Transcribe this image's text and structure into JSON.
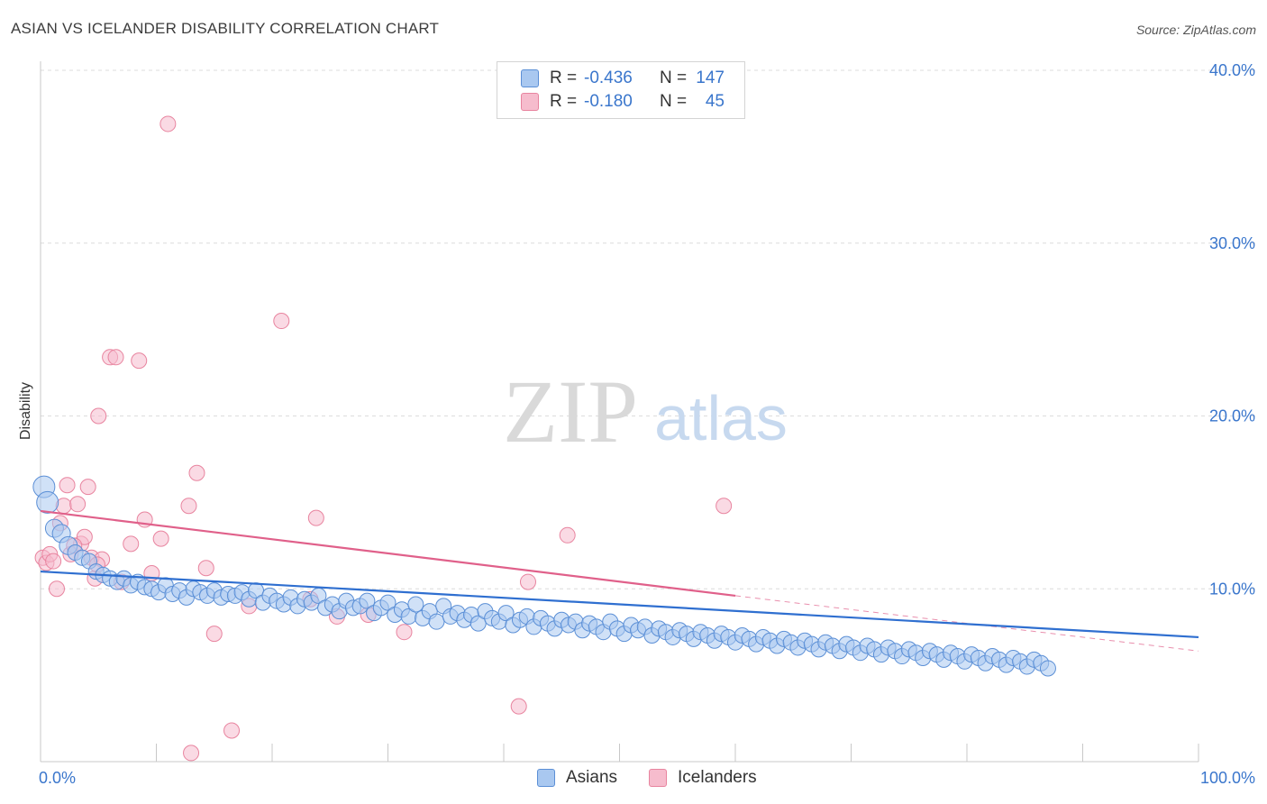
{
  "header": {
    "title": "ASIAN VS ICELANDER DISABILITY CORRELATION CHART",
    "source": "Source: ZipAtlas.com"
  },
  "watermark": {
    "zip": "ZIP",
    "atlas": "atlas"
  },
  "legend": {
    "rows": [
      {
        "r_label": "R =",
        "r_value": "-0.436",
        "n_label": "N =",
        "n_value": "147"
      },
      {
        "r_label": "R =",
        "r_value": "-0.180",
        "n_label": "N =",
        "n_value": "45"
      }
    ]
  },
  "bottom_legend": {
    "asians": "Asians",
    "icelanders": "Icelanders"
  },
  "colors": {
    "asians_fill": "#a9c8f0",
    "asians_stroke": "#5b8fd6",
    "asians_line": "#2f6fd0",
    "icelanders_fill": "#f6bccd",
    "icelanders_stroke": "#e8849f",
    "icelanders_line": "#e0608a",
    "tick_label": "#3a76cc",
    "grid": "#dcdcdc"
  },
  "chart_data": {
    "type": "scatter",
    "title": "ASIAN VS ICELANDER DISABILITY CORRELATION CHART",
    "xlabel": "",
    "ylabel": "Disability",
    "xlim": [
      0,
      100
    ],
    "ylim": [
      0,
      40
    ],
    "x_tick_labels": [
      "0.0%",
      "100.0%"
    ],
    "y_ticks": [
      10,
      20,
      30,
      40
    ],
    "y_tick_labels": [
      "10.0%",
      "20.0%",
      "30.0%",
      "40.0%"
    ],
    "grid": true,
    "legend_position": "top-center",
    "series": [
      {
        "name": "Asians",
        "r": -0.436,
        "n": 147,
        "trend": {
          "x": [
            0,
            100
          ],
          "y": [
            11.0,
            7.2
          ]
        },
        "points": [
          [
            0.3,
            15.9
          ],
          [
            0.6,
            15.0
          ],
          [
            1.2,
            13.5
          ],
          [
            1.8,
            13.2
          ],
          [
            2.4,
            12.5
          ],
          [
            3.0,
            12.1
          ],
          [
            3.6,
            11.8
          ],
          [
            4.2,
            11.6
          ],
          [
            4.8,
            11.0
          ],
          [
            5.4,
            10.8
          ],
          [
            6.0,
            10.6
          ],
          [
            6.6,
            10.4
          ],
          [
            7.2,
            10.6
          ],
          [
            7.8,
            10.2
          ],
          [
            8.4,
            10.4
          ],
          [
            9.0,
            10.1
          ],
          [
            9.6,
            10.0
          ],
          [
            10.2,
            9.8
          ],
          [
            10.8,
            10.2
          ],
          [
            11.4,
            9.7
          ],
          [
            12.0,
            9.9
          ],
          [
            12.6,
            9.5
          ],
          [
            13.2,
            10.0
          ],
          [
            13.8,
            9.8
          ],
          [
            14.4,
            9.6
          ],
          [
            15.0,
            9.9
          ],
          [
            15.6,
            9.5
          ],
          [
            16.2,
            9.7
          ],
          [
            16.8,
            9.6
          ],
          [
            17.4,
            9.8
          ],
          [
            18.0,
            9.4
          ],
          [
            18.6,
            9.9
          ],
          [
            19.2,
            9.2
          ],
          [
            19.8,
            9.6
          ],
          [
            20.4,
            9.3
          ],
          [
            21.0,
            9.1
          ],
          [
            21.6,
            9.5
          ],
          [
            22.2,
            9.0
          ],
          [
            22.8,
            9.4
          ],
          [
            23.4,
            9.2
          ],
          [
            24.0,
            9.6
          ],
          [
            24.6,
            8.9
          ],
          [
            25.2,
            9.1
          ],
          [
            25.8,
            8.7
          ],
          [
            26.4,
            9.3
          ],
          [
            27.0,
            8.9
          ],
          [
            27.6,
            9.0
          ],
          [
            28.2,
            9.3
          ],
          [
            28.8,
            8.6
          ],
          [
            29.4,
            8.9
          ],
          [
            30.0,
            9.2
          ],
          [
            30.6,
            8.5
          ],
          [
            31.2,
            8.8
          ],
          [
            31.8,
            8.4
          ],
          [
            32.4,
            9.1
          ],
          [
            33.0,
            8.3
          ],
          [
            33.6,
            8.7
          ],
          [
            34.2,
            8.1
          ],
          [
            34.8,
            9.0
          ],
          [
            35.4,
            8.4
          ],
          [
            36.0,
            8.6
          ],
          [
            36.6,
            8.2
          ],
          [
            37.2,
            8.5
          ],
          [
            37.8,
            8.0
          ],
          [
            38.4,
            8.7
          ],
          [
            39.0,
            8.3
          ],
          [
            39.6,
            8.1
          ],
          [
            40.2,
            8.6
          ],
          [
            40.8,
            7.9
          ],
          [
            41.4,
            8.2
          ],
          [
            42.0,
            8.4
          ],
          [
            42.6,
            7.8
          ],
          [
            43.2,
            8.3
          ],
          [
            43.8,
            8.0
          ],
          [
            44.4,
            7.7
          ],
          [
            45.0,
            8.2
          ],
          [
            45.6,
            7.9
          ],
          [
            46.2,
            8.1
          ],
          [
            46.8,
            7.6
          ],
          [
            47.4,
            8.0
          ],
          [
            48.0,
            7.8
          ],
          [
            48.6,
            7.5
          ],
          [
            49.2,
            8.1
          ],
          [
            49.8,
            7.7
          ],
          [
            50.4,
            7.4
          ],
          [
            51.0,
            7.9
          ],
          [
            51.6,
            7.6
          ],
          [
            52.2,
            7.8
          ],
          [
            52.8,
            7.3
          ],
          [
            53.4,
            7.7
          ],
          [
            54.0,
            7.5
          ],
          [
            54.6,
            7.2
          ],
          [
            55.2,
            7.6
          ],
          [
            55.8,
            7.4
          ],
          [
            56.4,
            7.1
          ],
          [
            57.0,
            7.5
          ],
          [
            57.6,
            7.3
          ],
          [
            58.2,
            7.0
          ],
          [
            58.8,
            7.4
          ],
          [
            59.4,
            7.2
          ],
          [
            60.0,
            6.9
          ],
          [
            60.6,
            7.3
          ],
          [
            61.2,
            7.1
          ],
          [
            61.8,
            6.8
          ],
          [
            62.4,
            7.2
          ],
          [
            63.0,
            7.0
          ],
          [
            63.6,
            6.7
          ],
          [
            64.2,
            7.1
          ],
          [
            64.8,
            6.9
          ],
          [
            65.4,
            6.6
          ],
          [
            66.0,
            7.0
          ],
          [
            66.6,
            6.8
          ],
          [
            67.2,
            6.5
          ],
          [
            67.8,
            6.9
          ],
          [
            68.4,
            6.7
          ],
          [
            69.0,
            6.4
          ],
          [
            69.6,
            6.8
          ],
          [
            70.2,
            6.6
          ],
          [
            70.8,
            6.3
          ],
          [
            71.4,
            6.7
          ],
          [
            72.0,
            6.5
          ],
          [
            72.6,
            6.2
          ],
          [
            73.2,
            6.6
          ],
          [
            73.8,
            6.4
          ],
          [
            74.4,
            6.1
          ],
          [
            75.0,
            6.5
          ],
          [
            75.6,
            6.3
          ],
          [
            76.2,
            6.0
          ],
          [
            76.8,
            6.4
          ],
          [
            77.4,
            6.2
          ],
          [
            78.0,
            5.9
          ],
          [
            78.6,
            6.3
          ],
          [
            79.2,
            6.1
          ],
          [
            79.8,
            5.8
          ],
          [
            80.4,
            6.2
          ],
          [
            81.0,
            6.0
          ],
          [
            81.6,
            5.7
          ],
          [
            82.2,
            6.1
          ],
          [
            82.8,
            5.9
          ],
          [
            83.4,
            5.6
          ],
          [
            84.0,
            6.0
          ],
          [
            84.6,
            5.8
          ],
          [
            85.2,
            5.5
          ],
          [
            85.8,
            5.9
          ],
          [
            86.4,
            5.7
          ],
          [
            87.0,
            5.4
          ]
        ]
      },
      {
        "name": "Icelanders",
        "r": -0.18,
        "n": 45,
        "trend": {
          "x": [
            0,
            60
          ],
          "y": [
            14.5,
            9.6
          ]
        },
        "trend_dashed": {
          "x": [
            60,
            100
          ],
          "y": [
            9.6,
            6.4
          ]
        },
        "points": [
          [
            0.2,
            11.8
          ],
          [
            0.5,
            11.5
          ],
          [
            0.8,
            12.0
          ],
          [
            1.1,
            11.6
          ],
          [
            1.4,
            10.0
          ],
          [
            1.7,
            13.8
          ],
          [
            2.0,
            14.8
          ],
          [
            2.3,
            16.0
          ],
          [
            2.6,
            12.0
          ],
          [
            3.2,
            14.9
          ],
          [
            3.5,
            12.6
          ],
          [
            3.8,
            13.0
          ],
          [
            4.1,
            15.9
          ],
          [
            4.4,
            11.8
          ],
          [
            4.7,
            10.6
          ],
          [
            5.0,
            20.0
          ],
          [
            5.3,
            11.7
          ],
          [
            6.0,
            23.4
          ],
          [
            6.5,
            23.4
          ],
          [
            7.0,
            10.4
          ],
          [
            7.8,
            12.6
          ],
          [
            8.5,
            23.2
          ],
          [
            9.0,
            14.0
          ],
          [
            9.6,
            10.9
          ],
          [
            10.4,
            12.9
          ],
          [
            11.0,
            36.9
          ],
          [
            12.8,
            14.8
          ],
          [
            13.5,
            16.7
          ],
          [
            14.3,
            11.2
          ],
          [
            15.0,
            7.4
          ],
          [
            16.5,
            1.8
          ],
          [
            18.0,
            9.0
          ],
          [
            20.8,
            25.5
          ],
          [
            23.3,
            9.4
          ],
          [
            23.8,
            14.1
          ],
          [
            25.6,
            8.4
          ],
          [
            28.3,
            8.5
          ],
          [
            31.4,
            7.5
          ],
          [
            41.3,
            3.2
          ],
          [
            42.1,
            10.4
          ],
          [
            45.5,
            13.1
          ],
          [
            59.0,
            14.8
          ],
          [
            13.0,
            0.5
          ],
          [
            2.9,
            12.5
          ],
          [
            4.9,
            11.4
          ]
        ]
      }
    ]
  }
}
